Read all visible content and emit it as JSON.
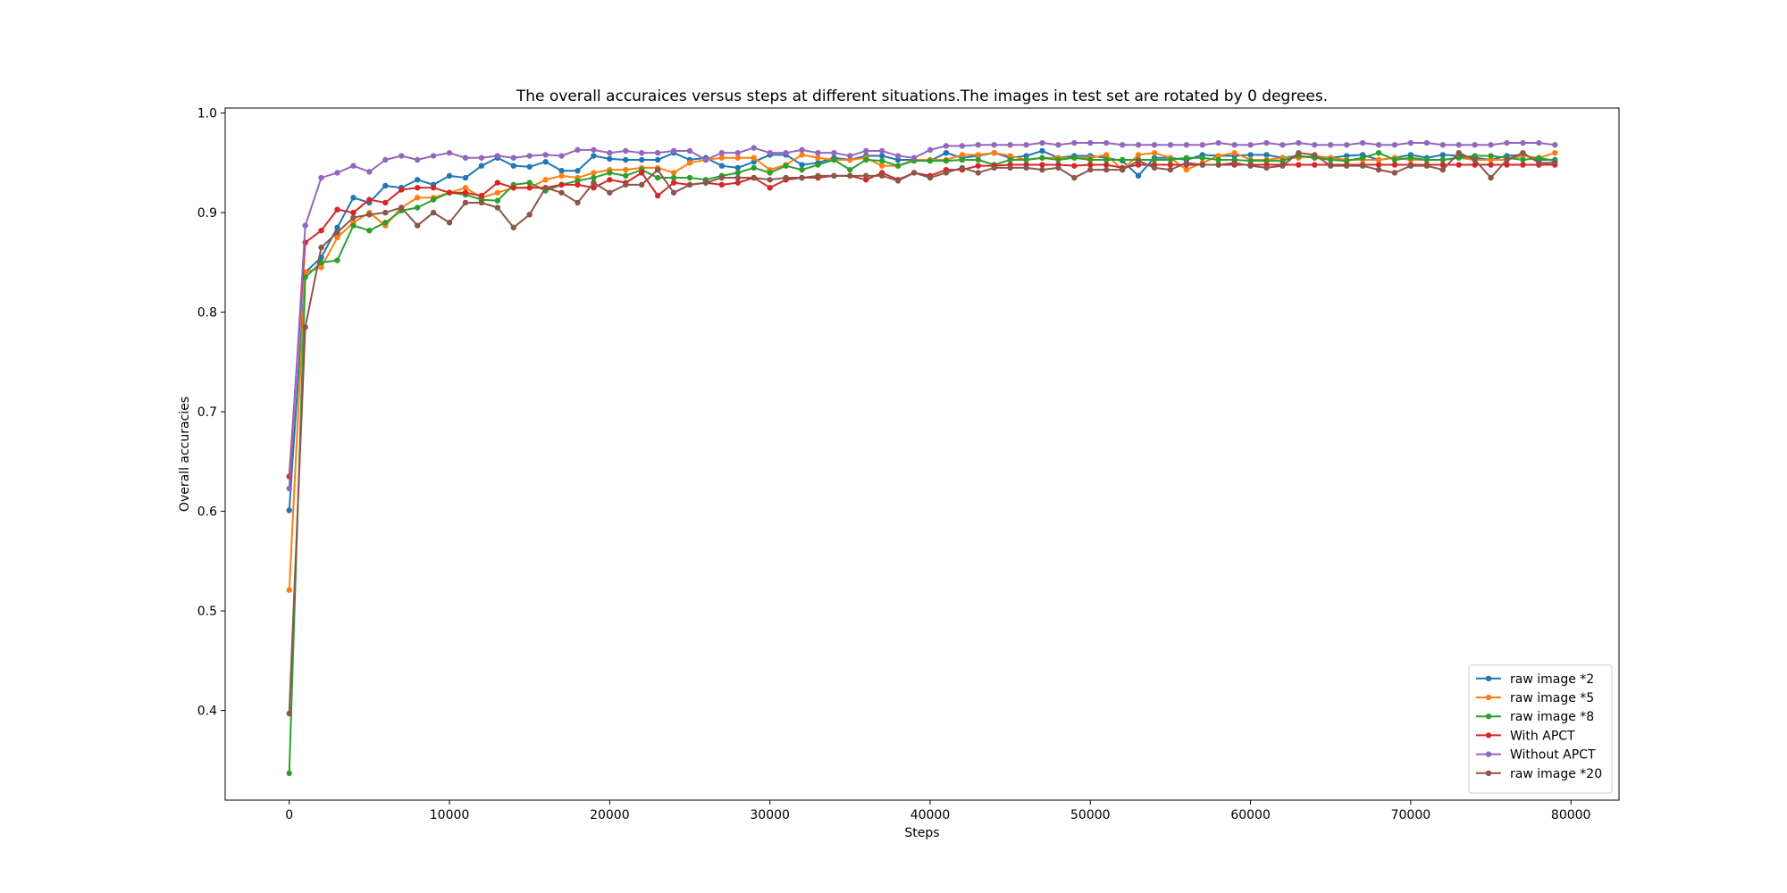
{
  "chart_data": {
    "type": "line",
    "title": "The overall accuraices versus steps at different situations.The images in test set are rotated by 0 degrees.",
    "xlabel": "Steps",
    "ylabel": "Overall accuracies",
    "xlim": [
      -4000,
      83000
    ],
    "ylim": [
      0.31,
      1.005
    ],
    "xticks": [
      0,
      10000,
      20000,
      30000,
      40000,
      50000,
      60000,
      70000,
      80000
    ],
    "yticks": [
      0.4,
      0.5,
      0.6,
      0.7,
      0.8,
      0.9,
      1.0
    ],
    "xtick_labels": [
      "0",
      "10000",
      "20000",
      "30000",
      "40000",
      "50000",
      "60000",
      "70000",
      "80000"
    ],
    "ytick_labels": [
      "0.4",
      "0.5",
      "0.6",
      "0.7",
      "0.8",
      "0.9",
      "1.0"
    ],
    "grid": false,
    "legend_position": "bottom-right",
    "x": [
      0,
      1000,
      2000,
      3000,
      4000,
      5000,
      6000,
      7000,
      8000,
      9000,
      10000,
      11000,
      12000,
      13000,
      14000,
      15000,
      16000,
      17000,
      18000,
      19000,
      20000,
      21000,
      22000,
      23000,
      24000,
      25000,
      26000,
      27000,
      28000,
      29000,
      30000,
      31000,
      32000,
      33000,
      34000,
      35000,
      36000,
      37000,
      38000,
      39000,
      40000,
      41000,
      42000,
      43000,
      44000,
      45000,
      46000,
      47000,
      48000,
      49000,
      50000,
      51000,
      52000,
      53000,
      54000,
      55000,
      56000,
      57000,
      58000,
      59000,
      60000,
      61000,
      62000,
      63000,
      64000,
      65000,
      66000,
      67000,
      68000,
      69000,
      70000,
      71000,
      72000,
      73000,
      74000,
      75000,
      76000,
      77000,
      78000,
      79000
    ],
    "series": [
      {
        "name": "raw image *2",
        "color": "#1f77b4",
        "values": [
          0.601,
          0.84,
          0.855,
          0.885,
          0.915,
          0.91,
          0.927,
          0.925,
          0.933,
          0.928,
          0.937,
          0.935,
          0.947,
          0.955,
          0.947,
          0.946,
          0.951,
          0.942,
          0.942,
          0.957,
          0.954,
          0.953,
          0.953,
          0.953,
          0.96,
          0.953,
          0.955,
          0.947,
          0.945,
          0.951,
          0.958,
          0.958,
          0.948,
          0.95,
          0.955,
          0.953,
          0.957,
          0.957,
          0.953,
          0.953,
          0.952,
          0.96,
          0.955,
          0.957,
          0.96,
          0.955,
          0.957,
          0.962,
          0.955,
          0.957,
          0.957,
          0.955,
          0.952,
          0.937,
          0.955,
          0.955,
          0.953,
          0.958,
          0.957,
          0.957,
          0.958,
          0.958,
          0.955,
          0.957,
          0.955,
          0.955,
          0.957,
          0.958,
          0.953,
          0.955,
          0.958,
          0.955,
          0.958,
          0.957,
          0.955,
          0.953,
          0.957,
          0.958,
          0.953,
          0.953
        ]
      },
      {
        "name": "raw image *5",
        "color": "#ff7f0e",
        "values": [
          0.521,
          0.84,
          0.845,
          0.875,
          0.89,
          0.9,
          0.887,
          0.905,
          0.915,
          0.915,
          0.92,
          0.925,
          0.915,
          0.92,
          0.925,
          0.925,
          0.933,
          0.937,
          0.935,
          0.94,
          0.943,
          0.943,
          0.945,
          0.945,
          0.94,
          0.95,
          0.953,
          0.955,
          0.955,
          0.955,
          0.943,
          0.948,
          0.958,
          0.955,
          0.953,
          0.953,
          0.955,
          0.947,
          0.947,
          0.953,
          0.953,
          0.953,
          0.958,
          0.958,
          0.96,
          0.957,
          0.953,
          0.955,
          0.955,
          0.955,
          0.955,
          0.958,
          0.943,
          0.958,
          0.96,
          0.955,
          0.943,
          0.95,
          0.957,
          0.96,
          0.953,
          0.953,
          0.955,
          0.955,
          0.957,
          0.955,
          0.953,
          0.953,
          0.953,
          0.955,
          0.953,
          0.953,
          0.953,
          0.955,
          0.953,
          0.953,
          0.953,
          0.957,
          0.955,
          0.96
        ]
      },
      {
        "name": "raw image *8",
        "color": "#2ca02c",
        "values": [
          0.337,
          0.835,
          0.85,
          0.852,
          0.887,
          0.882,
          0.89,
          0.902,
          0.905,
          0.913,
          0.92,
          0.918,
          0.913,
          0.912,
          0.928,
          0.93,
          0.922,
          0.928,
          0.932,
          0.935,
          0.94,
          0.937,
          0.943,
          0.935,
          0.935,
          0.935,
          0.933,
          0.937,
          0.94,
          0.945,
          0.94,
          0.947,
          0.943,
          0.948,
          0.953,
          0.943,
          0.953,
          0.952,
          0.947,
          0.952,
          0.952,
          0.952,
          0.953,
          0.953,
          0.948,
          0.953,
          0.953,
          0.955,
          0.953,
          0.955,
          0.953,
          0.953,
          0.953,
          0.953,
          0.953,
          0.953,
          0.955,
          0.955,
          0.953,
          0.953,
          0.952,
          0.952,
          0.952,
          0.957,
          0.955,
          0.953,
          0.952,
          0.955,
          0.96,
          0.953,
          0.955,
          0.953,
          0.953,
          0.955,
          0.957,
          0.957,
          0.955,
          0.953,
          0.955,
          0.952
        ]
      },
      {
        "name": "With APCT",
        "color": "#d62728",
        "values": [
          0.635,
          0.87,
          0.882,
          0.903,
          0.9,
          0.913,
          0.91,
          0.923,
          0.925,
          0.925,
          0.92,
          0.92,
          0.917,
          0.93,
          0.925,
          0.925,
          0.925,
          0.928,
          0.928,
          0.925,
          0.933,
          0.93,
          0.94,
          0.917,
          0.93,
          0.928,
          0.93,
          0.928,
          0.93,
          0.935,
          0.925,
          0.933,
          0.935,
          0.935,
          0.937,
          0.937,
          0.933,
          0.94,
          0.933,
          0.94,
          0.937,
          0.943,
          0.943,
          0.947,
          0.947,
          0.948,
          0.948,
          0.948,
          0.948,
          0.947,
          0.948,
          0.948,
          0.945,
          0.948,
          0.948,
          0.948,
          0.948,
          0.948,
          0.948,
          0.948,
          0.948,
          0.948,
          0.948,
          0.948,
          0.948,
          0.948,
          0.948,
          0.948,
          0.948,
          0.948,
          0.948,
          0.948,
          0.948,
          0.948,
          0.948,
          0.948,
          0.948,
          0.948,
          0.948,
          0.948
        ]
      },
      {
        "name": "Without APCT",
        "color": "#9467bd",
        "values": [
          0.623,
          0.887,
          0.935,
          0.94,
          0.947,
          0.941,
          0.953,
          0.957,
          0.953,
          0.957,
          0.96,
          0.955,
          0.955,
          0.957,
          0.955,
          0.957,
          0.958,
          0.957,
          0.963,
          0.963,
          0.96,
          0.962,
          0.96,
          0.96,
          0.962,
          0.962,
          0.953,
          0.96,
          0.96,
          0.965,
          0.96,
          0.96,
          0.963,
          0.96,
          0.96,
          0.957,
          0.962,
          0.962,
          0.957,
          0.955,
          0.963,
          0.967,
          0.967,
          0.968,
          0.968,
          0.968,
          0.968,
          0.97,
          0.968,
          0.97,
          0.97,
          0.97,
          0.968,
          0.968,
          0.968,
          0.968,
          0.968,
          0.968,
          0.97,
          0.968,
          0.968,
          0.97,
          0.968,
          0.97,
          0.968,
          0.968,
          0.968,
          0.97,
          0.968,
          0.968,
          0.97,
          0.97,
          0.968,
          0.968,
          0.968,
          0.968,
          0.97,
          0.97,
          0.97,
          0.968
        ]
      },
      {
        "name": "raw image *20",
        "color": "#8c564b",
        "values": [
          0.397,
          0.785,
          0.865,
          0.88,
          0.895,
          0.898,
          0.9,
          0.905,
          0.887,
          0.9,
          0.89,
          0.91,
          0.91,
          0.905,
          0.885,
          0.898,
          0.925,
          0.92,
          0.91,
          0.93,
          0.92,
          0.928,
          0.928,
          0.943,
          0.92,
          0.928,
          0.93,
          0.935,
          0.935,
          0.935,
          0.933,
          0.935,
          0.935,
          0.937,
          0.937,
          0.937,
          0.937,
          0.937,
          0.932,
          0.94,
          0.935,
          0.94,
          0.945,
          0.94,
          0.945,
          0.945,
          0.945,
          0.943,
          0.945,
          0.935,
          0.943,
          0.943,
          0.943,
          0.952,
          0.945,
          0.943,
          0.95,
          0.948,
          0.948,
          0.95,
          0.947,
          0.945,
          0.947,
          0.96,
          0.958,
          0.947,
          0.947,
          0.947,
          0.943,
          0.94,
          0.947,
          0.947,
          0.943,
          0.96,
          0.953,
          0.935,
          0.953,
          0.96,
          0.95,
          0.95
        ]
      }
    ]
  }
}
